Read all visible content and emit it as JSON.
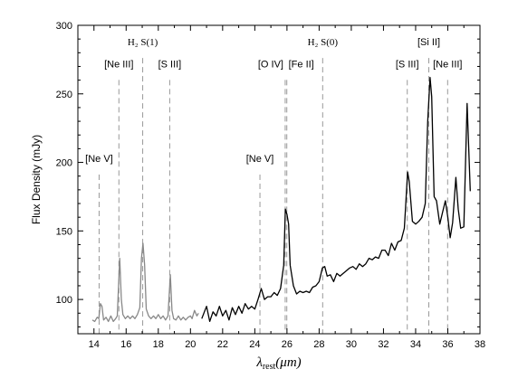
{
  "chart_data": {
    "type": "line",
    "xlabel": {
      "symbol": "λ",
      "subscript": "rest",
      "unit": "(μm)"
    },
    "ylabel": "Flux Density (mJy)",
    "xlim": [
      13,
      38
    ],
    "ylim": [
      75,
      300
    ],
    "x_ticks": [
      14,
      15,
      16,
      17,
      18,
      19,
      20,
      21,
      22,
      23,
      24,
      25,
      26,
      27,
      28,
      29,
      30,
      31,
      32,
      33,
      34,
      35,
      36,
      37,
      38
    ],
    "x_tick_labels": [
      "14",
      "16",
      "18",
      "20",
      "22",
      "24",
      "26",
      "28",
      "30",
      "32",
      "34",
      "36",
      "38"
    ],
    "y_ticks": [
      100,
      150,
      200,
      250,
      300
    ],
    "y_tick_labels": [
      "100",
      "150",
      "200",
      "250",
      "300"
    ],
    "series": [
      {
        "color": "#888888",
        "points": [
          [
            13.9,
            85
          ],
          [
            14.05,
            84
          ],
          [
            14.2,
            87
          ],
          [
            14.3,
            86
          ],
          [
            14.4,
            97
          ],
          [
            14.5,
            95
          ],
          [
            14.6,
            85
          ],
          [
            14.75,
            87
          ],
          [
            14.9,
            84
          ],
          [
            15.05,
            88
          ],
          [
            15.2,
            84
          ],
          [
            15.35,
            86
          ],
          [
            15.45,
            88
          ],
          [
            15.6,
            130
          ],
          [
            15.7,
            100
          ],
          [
            15.8,
            89
          ],
          [
            15.95,
            86
          ],
          [
            16.1,
            88
          ],
          [
            16.25,
            86
          ],
          [
            16.4,
            88
          ],
          [
            16.55,
            86
          ],
          [
            16.7,
            89
          ],
          [
            16.85,
            94
          ],
          [
            16.95,
            130
          ],
          [
            17.05,
            141
          ],
          [
            17.15,
            125
          ],
          [
            17.25,
            93
          ],
          [
            17.4,
            88
          ],
          [
            17.55,
            86
          ],
          [
            17.7,
            88
          ],
          [
            17.85,
            86
          ],
          [
            18.0,
            89
          ],
          [
            18.15,
            86
          ],
          [
            18.3,
            88
          ],
          [
            18.45,
            85
          ],
          [
            18.6,
            88
          ],
          [
            18.75,
            118
          ],
          [
            18.85,
            92
          ],
          [
            18.95,
            86
          ],
          [
            19.1,
            85
          ],
          [
            19.25,
            88
          ],
          [
            19.4,
            85
          ],
          [
            19.55,
            87
          ],
          [
            19.7,
            85
          ],
          [
            19.85,
            87
          ],
          [
            20.0,
            88
          ],
          [
            20.1,
            86
          ],
          [
            20.25,
            92
          ],
          [
            20.4,
            88
          ],
          [
            20.5,
            90
          ]
        ]
      },
      {
        "color": "#000000",
        "points": [
          [
            20.7,
            86
          ],
          [
            20.9,
            92
          ],
          [
            21.0,
            95
          ],
          [
            21.2,
            84
          ],
          [
            21.4,
            91
          ],
          [
            21.6,
            88
          ],
          [
            21.8,
            95
          ],
          [
            22.0,
            88
          ],
          [
            22.2,
            92
          ],
          [
            22.4,
            85
          ],
          [
            22.6,
            94
          ],
          [
            22.8,
            89
          ],
          [
            23.0,
            95
          ],
          [
            23.2,
            90
          ],
          [
            23.4,
            97
          ],
          [
            23.6,
            93
          ],
          [
            23.8,
            95
          ],
          [
            24.0,
            93
          ],
          [
            24.2,
            100
          ],
          [
            24.4,
            108
          ],
          [
            24.6,
            100
          ],
          [
            24.8,
            102
          ],
          [
            25.0,
            102
          ],
          [
            25.2,
            105
          ],
          [
            25.4,
            103
          ],
          [
            25.6,
            108
          ],
          [
            25.8,
            125
          ],
          [
            25.9,
            166
          ],
          [
            26.0,
            162
          ],
          [
            26.1,
            155
          ],
          [
            26.2,
            125
          ],
          [
            26.4,
            110
          ],
          [
            26.6,
            104
          ],
          [
            26.8,
            106
          ],
          [
            27.0,
            105
          ],
          [
            27.2,
            106
          ],
          [
            27.4,
            105
          ],
          [
            27.6,
            109
          ],
          [
            27.8,
            110
          ],
          [
            28.0,
            113
          ],
          [
            28.2,
            123
          ],
          [
            28.35,
            124
          ],
          [
            28.5,
            117
          ],
          [
            28.7,
            118
          ],
          [
            28.9,
            113
          ],
          [
            29.1,
            119
          ],
          [
            29.3,
            117
          ],
          [
            29.5,
            119
          ],
          [
            29.7,
            121
          ],
          [
            29.9,
            123
          ],
          [
            30.1,
            124
          ],
          [
            30.3,
            122
          ],
          [
            30.5,
            126
          ],
          [
            30.7,
            124
          ],
          [
            30.9,
            126
          ],
          [
            31.1,
            130
          ],
          [
            31.3,
            129
          ],
          [
            31.5,
            131
          ],
          [
            31.7,
            130
          ],
          [
            31.9,
            136
          ],
          [
            32.1,
            136
          ],
          [
            32.3,
            132
          ],
          [
            32.5,
            141
          ],
          [
            32.7,
            136
          ],
          [
            32.9,
            142
          ],
          [
            33.1,
            143
          ],
          [
            33.3,
            152
          ],
          [
            33.5,
            193
          ],
          [
            33.6,
            186
          ],
          [
            33.8,
            157
          ],
          [
            34.0,
            155
          ],
          [
            34.2,
            157
          ],
          [
            34.4,
            160
          ],
          [
            34.6,
            170
          ],
          [
            34.75,
            230
          ],
          [
            34.9,
            262
          ],
          [
            35.0,
            248
          ],
          [
            35.15,
            175
          ],
          [
            35.3,
            172
          ],
          [
            35.5,
            155
          ],
          [
            35.7,
            165
          ],
          [
            35.85,
            172
          ],
          [
            36.0,
            160
          ],
          [
            36.15,
            145
          ],
          [
            36.3,
            156
          ],
          [
            36.5,
            189
          ],
          [
            36.65,
            166
          ],
          [
            36.8,
            152
          ],
          [
            37.0,
            153
          ],
          [
            37.2,
            243
          ],
          [
            37.4,
            179
          ]
        ]
      }
    ],
    "lines": [
      {
        "x": 14.32,
        "label": "[Ne V]",
        "label_y": 203,
        "serif": false
      },
      {
        "x": 15.55,
        "label": "[Ne III]",
        "label_y": 272,
        "serif": false
      },
      {
        "x": 17.03,
        "label": "H₂ S(1)",
        "label_y": 288,
        "serif": true
      },
      {
        "x": 18.71,
        "label": "[S III]",
        "label_y": 272,
        "serif": false
      },
      {
        "x": 24.32,
        "label": "[Ne V]",
        "label_y": 203,
        "serif": false
      },
      {
        "x": 25.89,
        "label": "[O IV]",
        "label_y": 272,
        "serif": false
      },
      {
        "x": 25.99,
        "label": "[Fe II]",
        "label_y": 272,
        "serif": false
      },
      {
        "x": 28.22,
        "label": "H₂ S(0)",
        "label_y": 288,
        "serif": true
      },
      {
        "x": 33.48,
        "label": "[S III]",
        "label_y": 272,
        "serif": false
      },
      {
        "x": 34.82,
        "label": "[Si II]",
        "label_y": 288,
        "serif": false
      },
      {
        "x": 35.99,
        "label": "[Ne III]",
        "label_y": 272,
        "serif": false
      }
    ]
  }
}
